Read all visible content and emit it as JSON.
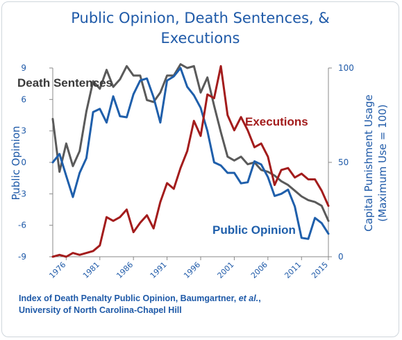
{
  "chart_data": {
    "type": "line",
    "title": "Public Opinion, Death Sentences, & Executions",
    "title_lines": [
      "Public Opinion, Death Sentences, &",
      "Executions"
    ],
    "ylabel_left": "Public Opinion",
    "ylabel_right": [
      "Capital Punishment Usage",
      "(Maximum Use = 100)"
    ],
    "left_axis": {
      "ylim": [
        -9,
        9
      ],
      "ticks": [
        "9",
        "6",
        "3",
        "0",
        "-3",
        "-6",
        "-9"
      ]
    },
    "right_axis": {
      "ylim": [
        0,
        100
      ],
      "ticks": [
        "100",
        "50",
        "0"
      ]
    },
    "x_ticks": [
      "1976",
      "1981",
      "1986",
      "1991",
      "1996",
      "2001",
      "2006",
      "2011",
      "2015"
    ],
    "x": [
      1974,
      1975,
      1976,
      1977,
      1978,
      1979,
      1980,
      1981,
      1982,
      1983,
      1984,
      1985,
      1986,
      1987,
      1988,
      1989,
      1990,
      1991,
      1992,
      1993,
      1994,
      1995,
      1996,
      1997,
      1998,
      1999,
      2000,
      2001,
      2002,
      2003,
      2004,
      2005,
      2006,
      2007,
      2008,
      2009,
      2010,
      2011,
      2012,
      2013,
      2014,
      2015
    ],
    "series": [
      {
        "name": "Death Sentences",
        "axis": "right",
        "color": "#5a5a5a",
        "values": [
          73,
          45,
          60,
          48,
          56,
          77,
          93,
          89,
          99,
          90,
          94,
          101,
          96,
          96,
          83,
          82,
          87,
          96,
          96,
          102,
          100,
          101,
          87,
          95,
          80,
          66,
          53,
          51,
          53,
          49,
          50,
          46,
          45,
          43,
          40,
          38,
          35,
          32,
          30,
          29,
          27,
          19
        ]
      },
      {
        "name": "Public Opinion",
        "axis": "left",
        "color": "#1f5fab",
        "values": [
          0.0,
          0.8,
          -1.3,
          -3.3,
          -1.0,
          0.4,
          4.8,
          5.1,
          3.8,
          6.3,
          4.4,
          4.3,
          6.5,
          7.8,
          8.0,
          6.2,
          3.8,
          7.8,
          8.2,
          9.0,
          7.2,
          6.4,
          5.2,
          3.0,
          0.0,
          -0.3,
          -1.0,
          -1.0,
          -2.0,
          -1.9,
          0.1,
          -0.2,
          -1.4,
          -3.2,
          -3.0,
          -2.6,
          -4.2,
          -7.2,
          -7.3,
          -5.3,
          -5.8,
          -6.8
        ]
      },
      {
        "name": "Executions",
        "axis": "right",
        "color": "#a31c1c",
        "values": [
          0,
          1,
          0,
          2,
          1,
          2,
          3,
          6,
          21,
          19,
          21,
          25,
          13,
          18,
          22,
          15,
          29,
          39,
          36,
          47,
          56,
          72,
          64,
          86,
          84,
          101,
          75,
          67,
          74,
          67,
          58,
          60,
          53,
          38,
          46,
          47,
          42,
          44,
          41,
          41,
          35,
          27
        ]
      }
    ],
    "annotations": [
      {
        "text": "Death Sentences",
        "color": "#3a3a3a"
      },
      {
        "text": "Executions",
        "color": "#a31c1c"
      },
      {
        "text": "Public Opinion",
        "color": "#1f5fab"
      }
    ],
    "legend": "inline labels",
    "grid": false
  },
  "source": {
    "line1_a": "Index of Death Penalty Public Opinion, Baumgartner, ",
    "line1_em": "et al.",
    "line1_b": ",",
    "line2": "University of North Carolina-Chapel Hill"
  }
}
